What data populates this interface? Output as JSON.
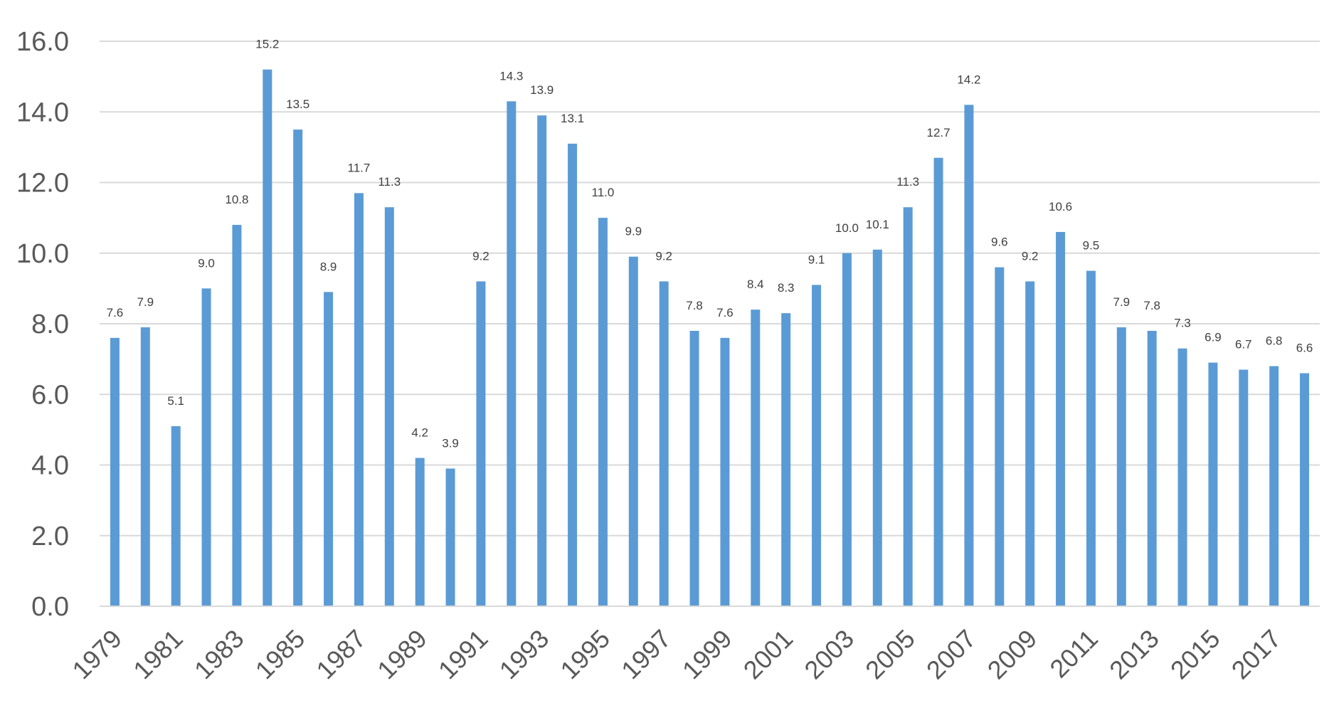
{
  "chart_data": {
    "type": "bar",
    "title": "",
    "xlabel": "",
    "ylabel": "",
    "ylim": [
      0,
      16
    ],
    "yticks": [
      "0.0",
      "2.0",
      "4.0",
      "6.0",
      "8.0",
      "10.0",
      "12.0",
      "14.0",
      "16.0"
    ],
    "grid": true,
    "legend": "none",
    "color": "#5b9bd5",
    "categories": [
      "1979",
      "1980",
      "1981",
      "1982",
      "1983",
      "1984",
      "1985",
      "1986",
      "1987",
      "1988",
      "1989",
      "1990",
      "1991",
      "1992",
      "1993",
      "1994",
      "1995",
      "1996",
      "1997",
      "1998",
      "1999",
      "2000",
      "2001",
      "2002",
      "2003",
      "2004",
      "2005",
      "2006",
      "2007",
      "2008",
      "2009",
      "2010",
      "2011",
      "2012",
      "2013",
      "2014",
      "2015",
      "2016",
      "2017",
      "2018"
    ],
    "xticks_shown": [
      "1979",
      "1981",
      "1983",
      "1985",
      "1987",
      "1989",
      "1991",
      "1993",
      "1995",
      "1997",
      "1999",
      "2001",
      "2003",
      "2005",
      "2007",
      "2009",
      "2011",
      "2013",
      "2015",
      "2017"
    ],
    "values": [
      7.6,
      7.9,
      5.1,
      9.0,
      10.8,
      15.2,
      13.5,
      8.9,
      11.7,
      11.3,
      4.2,
      3.9,
      9.2,
      14.3,
      13.9,
      13.1,
      11.0,
      9.9,
      9.2,
      7.8,
      7.6,
      8.4,
      8.3,
      9.1,
      10.0,
      10.1,
      11.3,
      12.7,
      14.2,
      9.6,
      9.2,
      10.6,
      9.5,
      7.9,
      7.8,
      7.3,
      6.9,
      6.7,
      6.8,
      6.6
    ],
    "data_labels": [
      "7.6",
      "7.9",
      "5.1",
      "9.0",
      "10.8",
      "15.2",
      "13.5",
      "8.9",
      "11.7",
      "11.3",
      "4.2",
      "3.9",
      "9.2",
      "14.3",
      "13.9",
      "13.1",
      "11.0",
      "9.9",
      "9.2",
      "7.8",
      "7.6",
      "8.4",
      "8.3",
      "9.1",
      "10.0",
      "10.1",
      "11.3",
      "12.7",
      "14.2",
      "9.6",
      "9.2",
      "10.6",
      "9.5",
      "7.9",
      "7.8",
      "7.3",
      "6.9",
      "6.7",
      "6.8",
      "6.6"
    ]
  }
}
